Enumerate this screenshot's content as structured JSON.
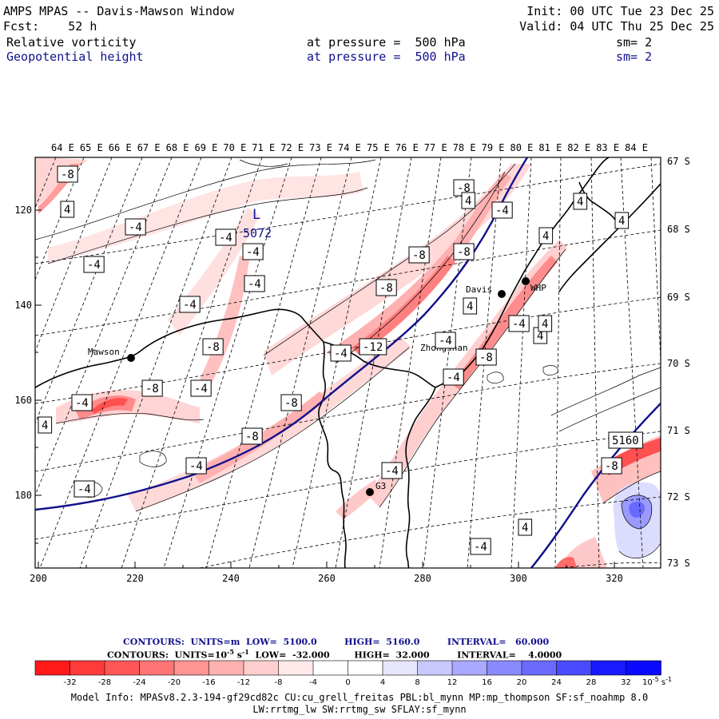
{
  "header": {
    "title": "AMPS MPAS -- Davis-Mawson Window",
    "fcst_label": "Fcst:",
    "fcst_value": "52 h",
    "init": "Init: 00 UTC Tue 23 Dec 25",
    "valid": "Valid: 04 UTC Thu 25 Dec 25",
    "field1": "Relative vorticity",
    "field2": "Geopotential height",
    "pressure1": "at pressure =  500 hPa",
    "pressure2": "at pressure =  500 hPa",
    "sm1": "sm= 2",
    "sm2": "sm= 2"
  },
  "map": {
    "top_lon_labels": [
      "64 E",
      "65 E",
      "66 E",
      "67 E",
      "68 E",
      "69 E",
      "70 E",
      "71 E",
      "72 E",
      "73 E",
      "74 E",
      "75 E",
      "76 E",
      "77 E",
      "78 E",
      "79 E",
      "80 E",
      "81 E",
      "82 E",
      "83 E",
      "84 E"
    ],
    "right_lat_labels": [
      "67 S",
      "68 S",
      "69 S",
      "70 S",
      "71 S",
      "72 S",
      "73 S"
    ],
    "left_y_ticks": [
      "120",
      "140",
      "160",
      "180"
    ],
    "bottom_x_ticks": [
      "200",
      "220",
      "240",
      "260",
      "280",
      "300",
      "320"
    ],
    "stations": [
      {
        "name": "Mawson"
      },
      {
        "name": "Davis"
      },
      {
        "name": "WHP"
      },
      {
        "name": "Zhongshan"
      },
      {
        "name": "G3"
      }
    ],
    "low_marker": "L",
    "low_value": "5072",
    "contour_labels": [
      "-8",
      "4",
      "-4",
      "-4",
      "-4",
      "-4",
      "-8",
      "-4",
      "-8",
      "-8",
      "-4",
      "-8",
      "-8",
      "-4",
      "4",
      "4",
      "-4",
      "-4",
      "4",
      "4",
      "-12",
      "-4",
      "-8",
      "-4",
      "-4",
      "-8",
      "-8",
      "-4",
      "4",
      "-8",
      "-4",
      "4",
      "-4",
      "-8",
      "-4",
      "4",
      "-4",
      "4",
      "4",
      "5160"
    ]
  },
  "colorbar": {
    "contours_line1": "CONTOURS:  UNITS=m  LOW=  5100.0         HIGH=  5160.0         INTERVAL=   60.000",
    "contours_line2": "CONTOURS:  UNITS=10",
    "contours_line2_sup": "-5",
    "contours_line2_rest": " s",
    "contours_line2_sup2": "-1",
    "contours_line2_tail": "  LOW=  -32.000        HIGH=  32.000         INTERVAL=    4.0000",
    "ticks": [
      "-32",
      "-28",
      "-24",
      "-20",
      "-16",
      "-12",
      "-8",
      "-4",
      "0",
      "4",
      "8",
      "12",
      "16",
      "20",
      "24",
      "28",
      "32"
    ],
    "unit": "10",
    "unit_sup": "-5",
    "unit_rest": " s",
    "unit_sup2": "-1",
    "colors": [
      "#ff1a1a",
      "#ff3a3a",
      "#ff5757",
      "#ff7474",
      "#ff9494",
      "#ffb1b1",
      "#ffcfcf",
      "#ffe9e9",
      "#ffffff",
      "#ffffff",
      "#e6e6ff",
      "#c8c8ff",
      "#a9a9ff",
      "#8a8aff",
      "#6a6aff",
      "#4a4aff",
      "#1a1aff",
      "#0a0aff"
    ]
  },
  "model_info": {
    "line1": "Model Info: MPASv8.2.3-194-gf29cd82c CU:cu_grell_freitas PBL:bl_mynn MP:mp_thompson SF:sf_noahmp 8.0",
    "line2": "LW:rrtmg_lw SW:rrtmg_sw SFLAY:sf_mynn"
  }
}
